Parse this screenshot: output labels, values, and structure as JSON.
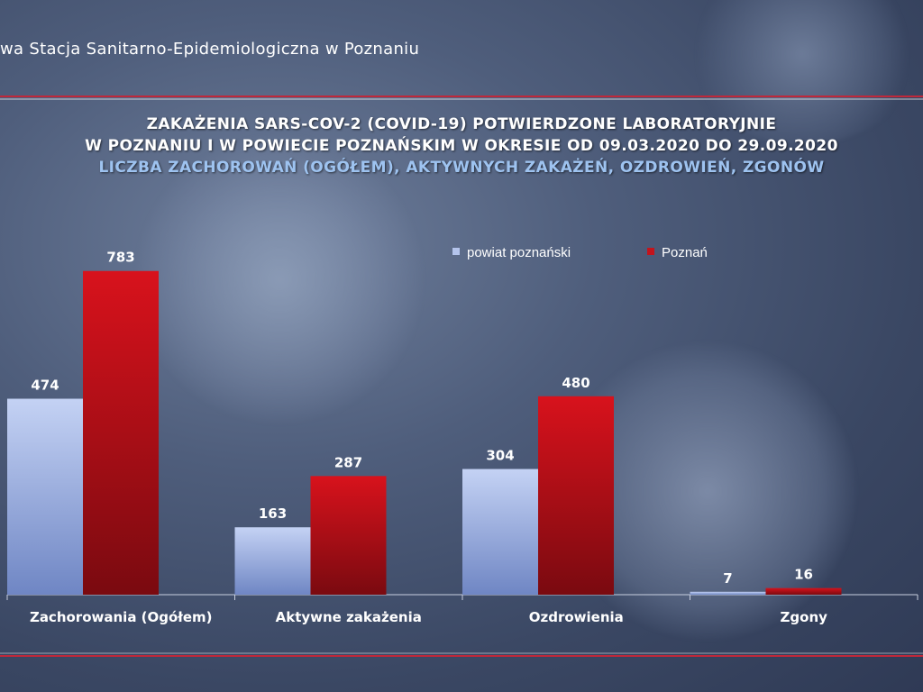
{
  "header": {
    "org_name": "wa Stacja Sanitarno-Epidemiologiczna w Poznaniu"
  },
  "colors": {
    "accent_rule": "#c0283a",
    "series_powiat": "#b4c4ec",
    "series_poznan": "#c3141c"
  },
  "chart_data": {
    "type": "bar",
    "title": "ZAKAŻENIA SARS-COV-2 (COVID-19) POTWIERDZONE LABORATORYJNIE",
    "title_line2": "W POZNANIU I W POWIECIE POZNAŃSKIM W OKRESIE OD 09.03.2020 DO 29.09.2020",
    "subtitle": "LICZBA ZACHOROWAŃ (OGÓŁEM), AKTYWNYCH ZAKAŻEŃ, OZDROWIEŃ, ZGONÓW",
    "categories": [
      "Zachorowania (Ogółem)",
      "Aktywne zakażenia",
      "Ozdrowienia",
      "Zgony"
    ],
    "series": [
      {
        "name": "powiat poznański",
        "values": [
          474,
          163,
          304,
          7
        ]
      },
      {
        "name": "Poznań",
        "values": [
          783,
          287,
          480,
          16
        ]
      }
    ],
    "ylim": [
      0,
      850
    ],
    "grid": false,
    "legend": "top-right",
    "data_labels": true
  }
}
